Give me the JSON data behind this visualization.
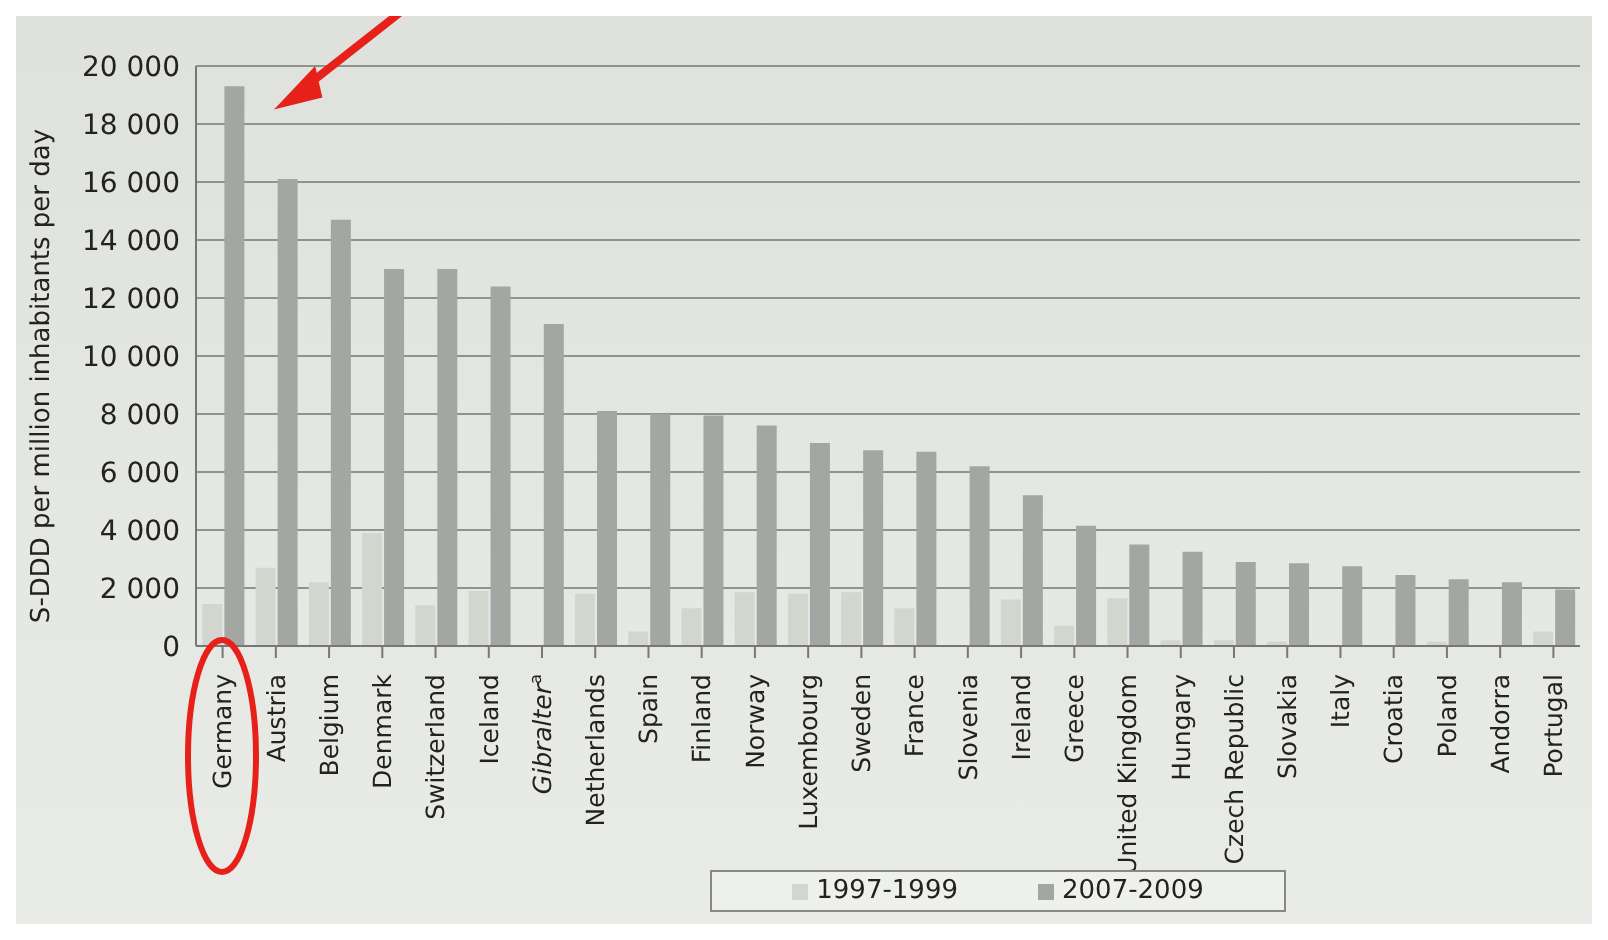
{
  "chart_data": {
    "type": "bar",
    "ylabel": "S-DDD per million inhabitants per day",
    "categories": [
      "Germany",
      "Austria",
      "Belgium",
      "Denmark",
      "Switzerland",
      "Iceland",
      "Gibralter$^{a}$",
      "Netherlands",
      "Spain",
      "Finland",
      "Norway",
      "Luxembourg",
      "Sweden",
      "France",
      "Slovenia",
      "Ireland",
      "Greece",
      "United Kingdom",
      "Hungary",
      "Czech Republic",
      "Slovakia",
      "Italy",
      "Croatia",
      "Poland",
      "Andorra",
      "Portugal"
    ],
    "series": [
      {
        "name": "1997-1999",
        "color": "#d2d6cf",
        "values": [
          1450,
          2700,
          2200,
          3900,
          1400,
          1900,
          null,
          1800,
          500,
          1300,
          1850,
          1800,
          1850,
          1300,
          null,
          1600,
          700,
          1650,
          200,
          200,
          150,
          null,
          null,
          150,
          null,
          500
        ]
      },
      {
        "name": "2007-2009",
        "color": "#a3a6a2",
        "values": [
          19300,
          16100,
          14700,
          13000,
          13000,
          12400,
          11100,
          8100,
          8000,
          7950,
          7600,
          7000,
          6750,
          6700,
          6200,
          5200,
          4150,
          3500,
          3250,
          2900,
          2850,
          2750,
          2450,
          2300,
          2200,
          1950
        ]
      }
    ],
    "ylim": [
      0,
      20000
    ],
    "yticks": [
      {
        "value": 0,
        "label": "0"
      },
      {
        "value": 2000,
        "label": "2 000"
      },
      {
        "value": 4000,
        "label": "4 000"
      },
      {
        "value": 6000,
        "label": "6 000"
      },
      {
        "value": 8000,
        "label": "8 000"
      },
      {
        "value": 10000,
        "label": "10 000"
      },
      {
        "value": 12000,
        "label": "12 000"
      },
      {
        "value": 14000,
        "label": "14 000"
      },
      {
        "value": 16000,
        "label": "16 000"
      },
      {
        "value": 18000,
        "label": "18 000"
      },
      {
        "value": 20000,
        "label": "20 000"
      }
    ],
    "grid": "y",
    "legend": "bottom"
  }
}
